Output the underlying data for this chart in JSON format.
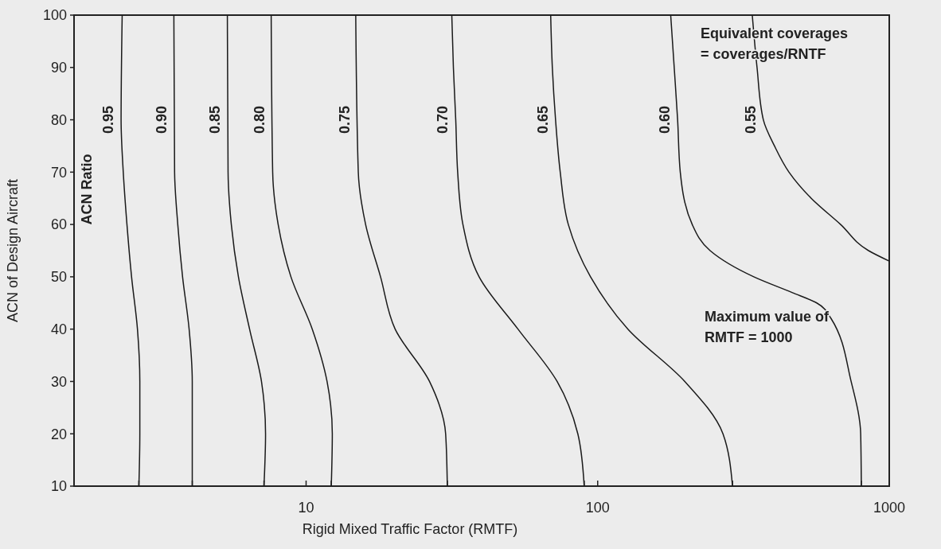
{
  "chart_data": {
    "type": "line",
    "xlabel": "Rigid Mixed Traffic Factor (RMTF)",
    "ylabel": "ACN of Design Aircraft",
    "legend_title": "ACN Ratio",
    "log": "x",
    "xlim": [
      1.6,
      1000
    ],
    "ylim": [
      10,
      100
    ],
    "xticks": [
      {
        "value": 2.67,
        "label": null
      },
      {
        "value": 4.07,
        "label": null
      },
      {
        "value": 7.17,
        "label": null
      },
      {
        "value": 12.2,
        "label": null
      },
      10,
      {
        "value": 30.5,
        "label": null
      },
      {
        "value": 89.9,
        "label": null
      },
      100,
      {
        "value": 290,
        "label": null
      },
      {
        "value": 802,
        "label": null
      },
      1000
    ],
    "yticks": [
      10,
      20,
      30,
      40,
      50,
      60,
      70,
      80,
      90,
      100
    ],
    "grid": false,
    "marker": "none",
    "line_style": "solid",
    "annotations": [
      "Equivalent coverages\n= coverages/RNTF",
      "Maximum value of\nRMTF = 1000"
    ],
    "series": [
      {
        "name": "0.95",
        "color": "#1a1a1a",
        "x": [
          2.34,
          2.32,
          2.36,
          2.43,
          2.52,
          2.64,
          2.69,
          2.69,
          2.67
        ],
        "values": [
          100,
          80,
          70,
          60,
          50,
          40,
          30,
          20,
          10
        ]
      },
      {
        "name": "0.90",
        "color": "#1a1a1a",
        "x": [
          3.52,
          3.54,
          3.63,
          3.77,
          3.97,
          4.07,
          4.07,
          4.07
        ],
        "values": [
          100,
          70,
          60,
          50,
          40,
          30,
          20,
          10
        ]
      },
      {
        "name": "0.85",
        "color": "#1a1a1a",
        "x": [
          5.37,
          5.4,
          5.54,
          5.86,
          6.4,
          7.03,
          7.26,
          7.17
        ],
        "values": [
          100,
          70,
          60,
          50,
          40,
          30,
          20,
          10
        ]
      },
      {
        "name": "0.80",
        "color": "#1a1a1a",
        "x": [
          7.59,
          7.68,
          8.02,
          8.87,
          10.5,
          11.8,
          12.3,
          12.2
        ],
        "values": [
          100,
          70,
          60,
          50,
          40,
          30,
          20,
          10
        ]
      },
      {
        "name": "0.75",
        "color": "#1a1a1a",
        "x": [
          14.8,
          15.1,
          16,
          18,
          20.2,
          26.5,
          30.1,
          30.5
        ],
        "values": [
          100,
          70,
          60,
          50,
          40,
          30,
          20,
          10
        ]
      },
      {
        "name": "0.70",
        "color": "#1a1a1a",
        "x": [
          31.6,
          32,
          32.6,
          33.1,
          34.5,
          39.2,
          53.3,
          72.6,
          85.5,
          89.9
        ],
        "values": [
          100,
          90,
          80,
          70,
          60,
          50,
          40,
          30,
          20,
          10
        ]
      },
      {
        "name": "0.65",
        "color": "#1a1a1a",
        "x": [
          69,
          69.9,
          71.7,
          74.4,
          79.3,
          94.5,
          127,
          199,
          269,
          290
        ],
        "values": [
          100,
          90,
          80,
          70,
          60,
          50,
          40,
          30,
          20,
          10
        ]
      },
      {
        "name": "0.60",
        "color": "#1a1a1a",
        "x": [
          178,
          183,
          188,
          192,
          211,
          243,
          343,
          464,
          564,
          632,
          740,
          798,
          802
        ],
        "values": [
          100,
          90,
          80,
          70,
          60,
          55,
          50,
          47,
          45,
          42,
          30,
          20,
          10
        ]
      },
      {
        "name": "0.55",
        "color": "#1a1a1a",
        "x": [
          339,
          352,
          370,
          404,
          453,
          540,
          681,
          849,
          1000
        ],
        "values": [
          100,
          90,
          80,
          75,
          70,
          65,
          60,
          55,
          53
        ]
      }
    ]
  }
}
